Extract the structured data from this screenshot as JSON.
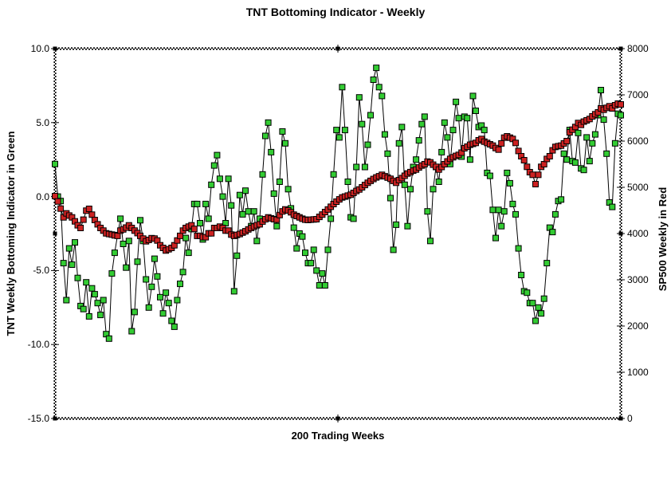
{
  "title": "TNT Bottoming Indicator - Weekly",
  "chart_data": {
    "type": "line",
    "title": "TNT Bottoming Indicator - Weekly",
    "xlabel": "200 Trading Weeks",
    "x_count": 200,
    "grid": false,
    "legend_position": "none",
    "background": "#ffffff",
    "line_color": "#000000",
    "left_axis": {
      "label": "TNT Weekly Bottoming Indicator in Green",
      "min": -15.0,
      "max": 10.0,
      "ticks": [
        "10.0",
        "5.0",
        "0.0",
        "-5.0",
        "-10.0",
        "-15.0"
      ]
    },
    "right_axis": {
      "label": "SP500 Weekly in Red",
      "min": 0,
      "max": 8000,
      "ticks": [
        "8000",
        "7000",
        "6000",
        "5000",
        "4000",
        "3000",
        "2000",
        "1000",
        "0"
      ]
    },
    "series": [
      {
        "name": "TNT Weekly Bottoming Indicator",
        "axis": "left",
        "marker": "square",
        "marker_color": "#33cc33",
        "values": [
          2.2,
          0.0,
          -0.3,
          -4.5,
          -7.0,
          -3.5,
          -4.6,
          -3.1,
          -5.5,
          -7.4,
          -7.6,
          -5.8,
          -8.1,
          -6.2,
          -6.6,
          -7.2,
          -8.0,
          -7.0,
          -9.3,
          -9.6,
          -5.2,
          -3.8,
          -2.6,
          -1.5,
          -3.2,
          -4.8,
          -3.0,
          -9.1,
          -7.8,
          -4.4,
          -1.6,
          -3.0,
          -5.6,
          -7.5,
          -6.1,
          -4.2,
          -5.4,
          -6.8,
          -7.9,
          -6.5,
          -7.2,
          -8.4,
          -8.8,
          -7.0,
          -5.9,
          -5.1,
          -2.8,
          -3.8,
          -2.2,
          -0.5,
          -0.5,
          -1.8,
          -2.9,
          -0.5,
          -1.5,
          0.8,
          2.1,
          2.8,
          1.2,
          0.0,
          -1.8,
          1.2,
          -0.6,
          -6.4,
          -4.0,
          0.1,
          -1.2,
          0.4,
          -1.0,
          -2.0,
          -1.0,
          -3.0,
          -1.5,
          1.5,
          4.1,
          5.0,
          3.0,
          0.2,
          -2.0,
          1.0,
          4.4,
          3.6,
          0.5,
          -0.8,
          -2.1,
          -3.5,
          -2.5,
          -2.7,
          -3.8,
          -4.5,
          -4.5,
          -3.6,
          -5.0,
          -6.0,
          -5.2,
          -6.0,
          -3.6,
          -1.5,
          1.5,
          4.5,
          4.0,
          7.4,
          4.5,
          1.0,
          -1.4,
          -1.5,
          2.0,
          6.7,
          4.9,
          2.0,
          3.5,
          5.5,
          7.9,
          8.7,
          7.4,
          6.8,
          4.2,
          2.9,
          -0.1,
          -3.6,
          -1.9,
          3.6,
          4.7,
          0.8,
          -2.0,
          0.5,
          2.0,
          2.5,
          3.8,
          4.9,
          5.4,
          -1.0,
          -3.0,
          0.5,
          2.0,
          1.0,
          3.0,
          5.0,
          4.0,
          2.2,
          4.5,
          6.4,
          5.3,
          2.7,
          5.4,
          5.3,
          2.5,
          6.8,
          5.8,
          4.7,
          4.8,
          4.5,
          1.6,
          1.4,
          -0.9,
          -2.8,
          -0.9,
          -2.0,
          -1.0,
          1.6,
          0.9,
          -0.5,
          -1.2,
          -3.5,
          -5.3,
          -6.4,
          -6.5,
          -7.2,
          -7.2,
          -8.4,
          -7.5,
          -7.9,
          -6.9,
          -4.5,
          -2.1,
          -2.4,
          -1.2,
          -0.3,
          -0.2,
          2.9,
          2.5,
          4.5,
          2.4,
          2.3,
          4.3,
          1.9,
          1.8,
          4.0,
          2.4,
          3.6,
          4.2,
          5.5,
          7.2,
          5.2,
          2.9,
          -0.4,
          -0.7,
          3.6,
          5.6,
          5.5
        ]
      },
      {
        "name": "SP500 Weekly",
        "axis": "right",
        "marker": "square",
        "marker_color": "#cc2222",
        "values": [
          4810,
          4695,
          4540,
          4350,
          4437,
          4390,
          4350,
          4264,
          4180,
          4121,
          4300,
          4495,
          4535,
          4409,
          4293,
          4200,
          4121,
          4064,
          4006,
          3990,
          3978,
          3960,
          3950,
          4064,
          4090,
          4130,
          4178,
          4120,
          4064,
          4010,
          3950,
          3891,
          3833,
          3862,
          3900,
          3891,
          3850,
          3747,
          3690,
          3633,
          3660,
          3690,
          3747,
          3850,
          3950,
          4064,
          4121,
          4150,
          4178,
          4100,
          3950,
          3950,
          3921,
          3921,
          4006,
          4006,
          4121,
          4121,
          4150,
          4121,
          4064,
          4064,
          3978,
          3950,
          3970,
          3990,
          4020,
          4050,
          4090,
          4121,
          4150,
          4180,
          4200,
          4260,
          4310,
          4350,
          4330,
          4310,
          4300,
          4400,
          4480,
          4523,
          4500,
          4460,
          4409,
          4380,
          4350,
          4320,
          4300,
          4293,
          4300,
          4305,
          4310,
          4360,
          4410,
          4466,
          4520,
          4580,
          4638,
          4690,
          4740,
          4781,
          4800,
          4820,
          4840,
          4880,
          4920,
          4954,
          5000,
          5050,
          5098,
          5140,
          5180,
          5213,
          5240,
          5271,
          5240,
          5210,
          5184,
          5140,
          5098,
          5155,
          5200,
          5250,
          5299,
          5330,
          5360,
          5385,
          5430,
          5470,
          5500,
          5557,
          5540,
          5490,
          5443,
          5385,
          5440,
          5500,
          5560,
          5615,
          5650,
          5680,
          5701,
          5750,
          5845,
          5880,
          5920,
          5940,
          5960,
          6017,
          6046,
          5988,
          5960,
          5931,
          5902,
          5850,
          5816,
          5950,
          6075,
          6103,
          6075,
          6046,
          5960,
          5787,
          5672,
          5586,
          5443,
          5328,
          5270,
          5069,
          5270,
          5443,
          5500,
          5614,
          5672,
          5800,
          5874,
          5890,
          5902,
          5950,
          6000,
          6189,
          6247,
          6305,
          6391,
          6350,
          6420,
          6448,
          6477,
          6534,
          6581,
          6621,
          6707,
          6678,
          6719,
          6753,
          6707,
          6776,
          6810,
          6793
        ]
      }
    ]
  }
}
